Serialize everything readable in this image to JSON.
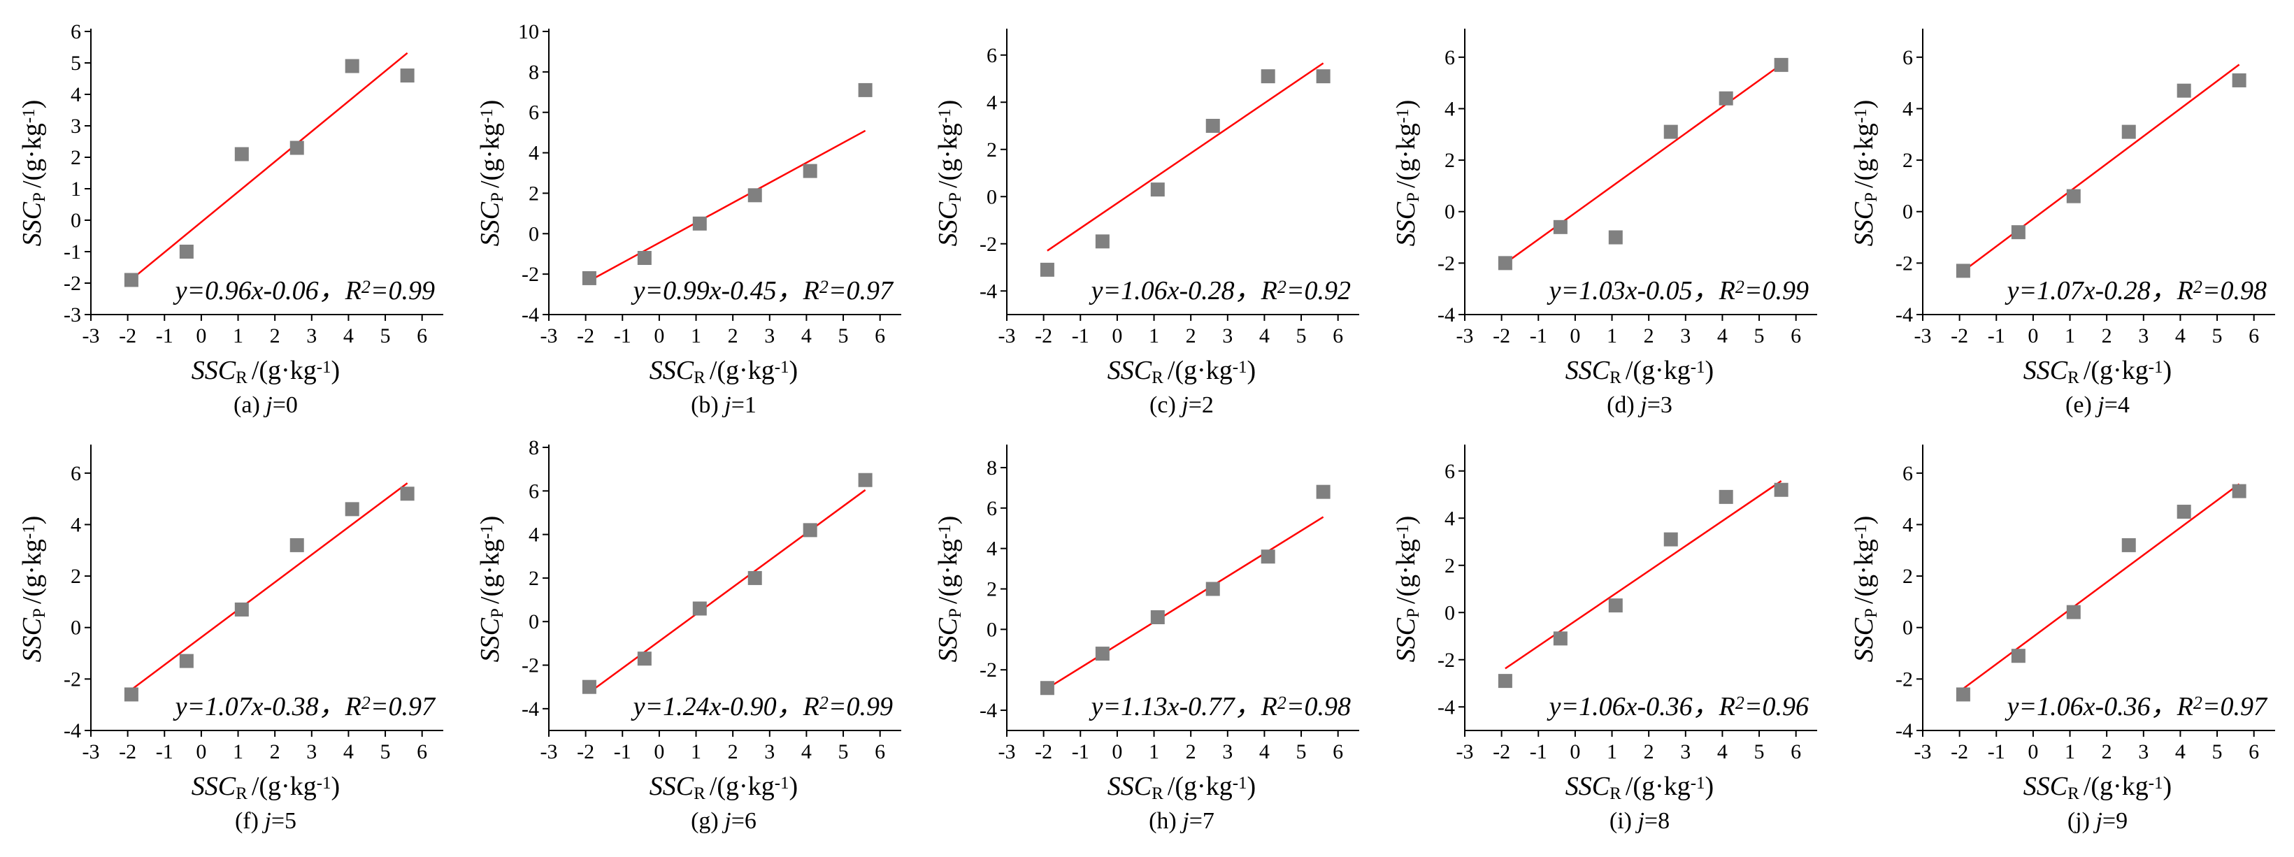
{
  "colors": {
    "marker": "#808080",
    "fit_line": "#ff0000",
    "axis": "#000000"
  },
  "axis_text": {
    "ylabel_main": "SSC",
    "ylabel_sub": "P",
    "xlabel_main": "SSC",
    "xlabel_sub": "R",
    "unit_prefix": "/(g·kg",
    "unit_exp": "-1",
    "unit_suffix": ")",
    "r2_prefix": "R",
    "r2_exp": "2"
  },
  "chart_data": [
    {
      "type": "scatter",
      "caption_prefix": "(a) ",
      "caption_j": "j",
      "caption_value": "=0",
      "equation": "y=0.96x-0.06",
      "r2_value": "=0.99",
      "xlim": [
        -3,
        6.5
      ],
      "ylim": [
        -3,
        6
      ],
      "xticks": [
        -3,
        -2,
        -1,
        0,
        1,
        2,
        3,
        4,
        5,
        6
      ],
      "yticks": [
        -3,
        -2,
        -1,
        0,
        1,
        2,
        3,
        4,
        5,
        6
      ],
      "x": [
        -1.9,
        -0.4,
        1.1,
        2.6,
        4.1,
        5.6
      ],
      "y": [
        -1.9,
        -1.0,
        2.1,
        2.3,
        4.9,
        4.6
      ],
      "fit": {
        "slope": 0.96,
        "intercept": -0.06,
        "x_range": [
          -1.9,
          5.6
        ]
      }
    },
    {
      "type": "scatter",
      "caption_prefix": "(b) ",
      "caption_j": "j",
      "caption_value": "=1",
      "equation": "y=0.99x-0.45",
      "r2_value": "=0.97",
      "xlim": [
        -3,
        6.5
      ],
      "ylim": [
        -4,
        10
      ],
      "xticks": [
        -3,
        -2,
        -1,
        0,
        1,
        2,
        3,
        4,
        5,
        6
      ],
      "yticks": [
        -4,
        -2,
        0,
        2,
        4,
        6,
        8,
        10
      ],
      "x": [
        -1.9,
        -0.4,
        1.1,
        2.6,
        4.1,
        5.6
      ],
      "y": [
        -2.2,
        -1.2,
        0.5,
        1.9,
        3.1,
        7.1
      ],
      "fit": {
        "slope": 0.99,
        "intercept": -0.45,
        "x_range": [
          -1.9,
          5.6
        ]
      }
    },
    {
      "type": "scatter",
      "caption_prefix": "(c) ",
      "caption_j": "j",
      "caption_value": "=2",
      "equation": "y=1.06x-0.28",
      "r2_value": "=0.92",
      "xlim": [
        -3,
        6.5
      ],
      "ylim": [
        -5,
        7
      ],
      "xticks": [
        -3,
        -2,
        -1,
        0,
        1,
        2,
        3,
        4,
        5,
        6
      ],
      "yticks": [
        -4,
        -2,
        0,
        2,
        4,
        6
      ],
      "x": [
        -1.9,
        -0.4,
        1.1,
        2.6,
        4.1,
        5.6
      ],
      "y": [
        -3.1,
        -1.9,
        0.3,
        3.0,
        5.1,
        5.1
      ],
      "fit": {
        "slope": 1.06,
        "intercept": -0.28,
        "x_range": [
          -1.9,
          5.6
        ]
      }
    },
    {
      "type": "scatter",
      "caption_prefix": "(d) ",
      "caption_j": "j",
      "caption_value": "=3",
      "equation": "y=1.03x-0.05",
      "r2_value": "=0.99",
      "xlim": [
        -3,
        6.5
      ],
      "ylim": [
        -4,
        7
      ],
      "xticks": [
        -3,
        -2,
        -1,
        0,
        1,
        2,
        3,
        4,
        5,
        6
      ],
      "yticks": [
        -4,
        -2,
        0,
        2,
        4,
        6
      ],
      "x": [
        -1.9,
        -0.4,
        1.1,
        2.6,
        4.1,
        5.6
      ],
      "y": [
        -2.0,
        -0.6,
        -1.0,
        3.1,
        4.4,
        5.7
      ],
      "fit": {
        "slope": 1.03,
        "intercept": -0.05,
        "x_range": [
          -1.9,
          5.6
        ]
      }
    },
    {
      "type": "scatter",
      "caption_prefix": "(e) ",
      "caption_j": "j",
      "caption_value": "=4",
      "equation": "y=1.07x-0.28",
      "r2_value": "=0.98",
      "xlim": [
        -3,
        6.5
      ],
      "ylim": [
        -4,
        7
      ],
      "xticks": [
        -3,
        -2,
        -1,
        0,
        1,
        2,
        3,
        4,
        5,
        6
      ],
      "yticks": [
        -4,
        -2,
        0,
        2,
        4,
        6
      ],
      "x": [
        -1.9,
        -0.4,
        1.1,
        2.6,
        4.1,
        5.6
      ],
      "y": [
        -2.3,
        -0.8,
        0.6,
        3.1,
        4.7,
        5.1
      ],
      "fit": {
        "slope": 1.07,
        "intercept": -0.28,
        "x_range": [
          -1.9,
          5.6
        ]
      }
    },
    {
      "type": "scatter",
      "caption_prefix": "(f) ",
      "caption_j": "j",
      "caption_value": "=5",
      "equation": "y=1.07x-0.38",
      "r2_value": "=0.97",
      "xlim": [
        -3,
        6.5
      ],
      "ylim": [
        -4,
        7
      ],
      "xticks": [
        -3,
        -2,
        -1,
        0,
        1,
        2,
        3,
        4,
        5,
        6
      ],
      "yticks": [
        -4,
        -2,
        0,
        2,
        4,
        6
      ],
      "x": [
        -1.9,
        -0.4,
        1.1,
        2.6,
        4.1,
        5.6
      ],
      "y": [
        -2.6,
        -1.3,
        0.7,
        3.2,
        4.6,
        5.2
      ],
      "fit": {
        "slope": 1.07,
        "intercept": -0.38,
        "x_range": [
          -1.9,
          5.6
        ]
      }
    },
    {
      "type": "scatter",
      "caption_prefix": "(g) ",
      "caption_j": "j",
      "caption_value": "=6",
      "equation": "y=1.24x-0.90",
      "r2_value": "=0.99",
      "xlim": [
        -3,
        6.5
      ],
      "ylim": [
        -5,
        8
      ],
      "xticks": [
        -3,
        -2,
        -1,
        0,
        1,
        2,
        3,
        4,
        5,
        6
      ],
      "yticks": [
        -4,
        -2,
        0,
        2,
        4,
        6,
        8
      ],
      "x": [
        -1.9,
        -0.4,
        1.1,
        2.6,
        4.1,
        5.6
      ],
      "y": [
        -3.0,
        -1.7,
        0.6,
        2.0,
        4.2,
        6.5
      ],
      "fit": {
        "slope": 1.24,
        "intercept": -0.9,
        "x_range": [
          -1.9,
          5.6
        ]
      }
    },
    {
      "type": "scatter",
      "caption_prefix": "(h) ",
      "caption_j": "j",
      "caption_value": "=7",
      "equation": "y=1.13x-0.77",
      "r2_value": "=0.98",
      "xlim": [
        -3,
        6.5
      ],
      "ylim": [
        -5,
        9
      ],
      "xticks": [
        -3,
        -2,
        -1,
        0,
        1,
        2,
        3,
        4,
        5,
        6
      ],
      "yticks": [
        -4,
        -2,
        0,
        2,
        4,
        6,
        8
      ],
      "x": [
        -1.9,
        -0.4,
        1.1,
        2.6,
        4.1,
        5.6
      ],
      "y": [
        -2.9,
        -1.2,
        0.6,
        2.0,
        3.6,
        6.8
      ],
      "fit": {
        "slope": 1.13,
        "intercept": -0.77,
        "x_range": [
          -1.9,
          5.6
        ]
      }
    },
    {
      "type": "scatter",
      "caption_prefix": "(i) ",
      "caption_j": "j",
      "caption_value": "=8",
      "equation": "y=1.06x-0.36",
      "r2_value": "=0.96",
      "xlim": [
        -3,
        6.5
      ],
      "ylim": [
        -5,
        7
      ],
      "xticks": [
        -3,
        -2,
        -1,
        0,
        1,
        2,
        3,
        4,
        5,
        6
      ],
      "yticks": [
        -4,
        -2,
        0,
        2,
        4,
        6
      ],
      "x": [
        -1.9,
        -0.4,
        1.1,
        2.6,
        4.1,
        5.6
      ],
      "y": [
        -2.9,
        -1.1,
        0.3,
        3.1,
        4.9,
        5.2
      ],
      "fit": {
        "slope": 1.06,
        "intercept": -0.36,
        "x_range": [
          -1.9,
          5.6
        ]
      }
    },
    {
      "type": "scatter",
      "caption_prefix": "(j) ",
      "caption_j": "j",
      "caption_value": "=9",
      "equation": "y=1.06x-0.36",
      "r2_value": "=0.97",
      "xlim": [
        -3,
        6.5
      ],
      "ylim": [
        -4,
        7
      ],
      "xticks": [
        -3,
        -2,
        -1,
        0,
        1,
        2,
        3,
        4,
        5,
        6
      ],
      "yticks": [
        -4,
        -2,
        0,
        2,
        4,
        6
      ],
      "x": [
        -1.9,
        -0.4,
        1.1,
        2.6,
        4.1,
        5.6
      ],
      "y": [
        -2.6,
        -1.1,
        0.6,
        3.2,
        4.5,
        5.3
      ],
      "fit": {
        "slope": 1.06,
        "intercept": -0.36,
        "x_range": [
          -1.9,
          5.6
        ]
      }
    }
  ]
}
